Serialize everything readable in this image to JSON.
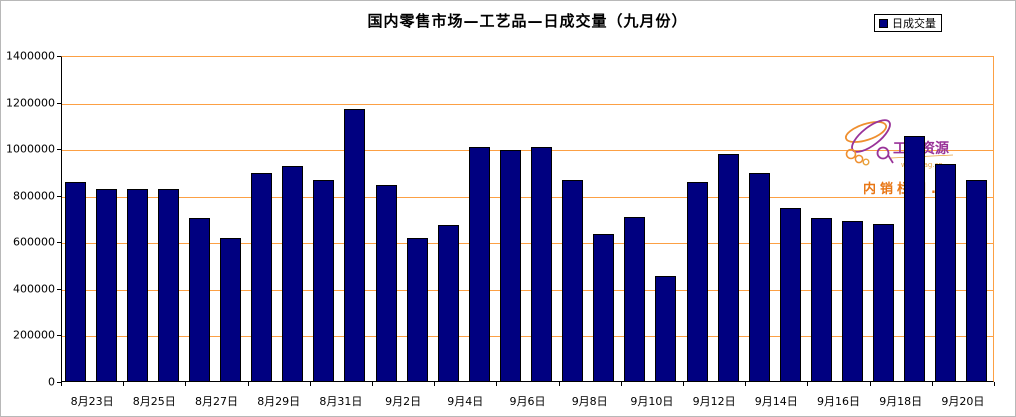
{
  "chart_data": {
    "type": "bar",
    "title": "国内零售市场—工艺品—日成交量（九月份）",
    "legend": [
      "日成交量"
    ],
    "legend_position": "top-right",
    "grid": true,
    "ylim": [
      0,
      1400000
    ],
    "y_tick_interval": 200000,
    "y_tick_labels": [
      "0",
      "200000",
      "400000",
      "600000",
      "800000",
      "1000000",
      "1200000",
      "1400000"
    ],
    "x_tick_labels": [
      "8月23日",
      "8月25日",
      "8月27日",
      "8月29日",
      "8月31日",
      "9月2日",
      "9月4日",
      "9月6日",
      "9月8日",
      "9月10日",
      "9月12日",
      "9月14日",
      "9月16日",
      "9月18日",
      "9月20日"
    ],
    "bars_per_x_label": 2,
    "series": [
      {
        "name": "日成交量",
        "values": [
          855000,
          825000,
          825000,
          825000,
          700000,
          615000,
          895000,
          925000,
          865000,
          1170000,
          840000,
          615000,
          670000,
          1005000,
          990000,
          1005000,
          865000,
          630000,
          705000,
          450000,
          855000,
          975000,
          895000,
          745000,
          700000,
          685000,
          675000,
          1050000,
          930000,
          865000
        ]
      }
    ],
    "bar_color": "#000080",
    "gridline_color": "#fca044",
    "axis_color": "#000000"
  },
  "watermark": {
    "brand": "工艺资源",
    "url": "www.cag.cn",
    "tagline": "内销栏目.",
    "brand_color": "#993399",
    "accent_color": "#ef8f2f",
    "tagline_color": "#e87614"
  }
}
